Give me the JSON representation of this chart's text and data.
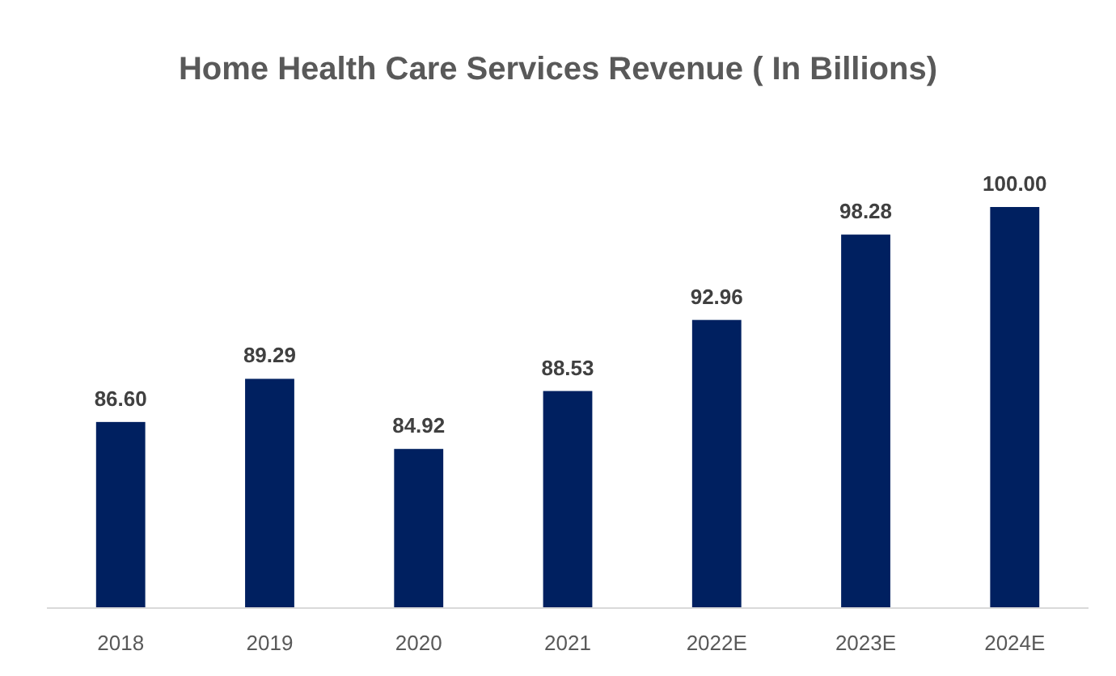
{
  "chart_data": {
    "type": "bar",
    "title": "Home Health Care Services Revenue ( In Billions)",
    "categories": [
      "2018",
      "2019",
      "2020",
      "2021",
      "2022E",
      "2023E",
      "2024E"
    ],
    "values": [
      86.6,
      89.29,
      84.92,
      88.53,
      92.96,
      98.28,
      100.0
    ],
    "value_labels": [
      "86.60",
      "89.29",
      "84.92",
      "88.53",
      "92.96",
      "98.28",
      "100.00"
    ],
    "color": "#002060",
    "ylim": [
      75,
      100
    ],
    "tick_labels": "x"
  }
}
